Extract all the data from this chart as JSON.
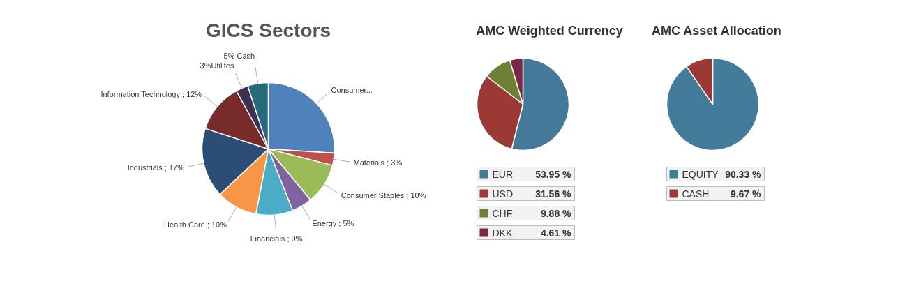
{
  "chart_data": [
    {
      "type": "pie",
      "title": "GICS Sectors",
      "categories": [
        "Consumer...",
        "Materials ; 3%",
        "Consumer Staples ; 10%",
        "Energy ; 5%",
        "Financials ; 9%",
        "Health Care ; 10%",
        "Industrials ; 17%",
        "Information Technology ; 12%",
        "3%Utilites",
        "5% Cash"
      ],
      "values": [
        26,
        3,
        10,
        5,
        9,
        10,
        17,
        12,
        3,
        5
      ],
      "colors": [
        "#4f81bd",
        "#c0504d",
        "#9bbb59",
        "#8064a2",
        "#4bacc6",
        "#f79646",
        "#2c4d75",
        "#772c2a",
        "#3f3151",
        "#276a7c"
      ],
      "legend": false
    },
    {
      "type": "pie",
      "title": "AMC Weighted Currency",
      "categories": [
        "EUR",
        "USD",
        "CHF",
        "DKK"
      ],
      "values": [
        53.95,
        31.56,
        9.88,
        4.61
      ],
      "value_labels": [
        "53.95 %",
        "31.56 %",
        "9.88 %",
        "4.61 %"
      ],
      "colors": [
        "#44799a",
        "#9b3a35",
        "#6e7f36",
        "#7f2448"
      ],
      "legend": "bottom"
    },
    {
      "type": "pie",
      "title": "AMC Asset Allocation",
      "categories": [
        "EQUITY",
        "CASH"
      ],
      "values": [
        90.33,
        9.67
      ],
      "value_labels": [
        "90.33 %",
        "9.67 %"
      ],
      "colors": [
        "#437c9b",
        "#9b3a35"
      ],
      "legend": "bottom"
    }
  ]
}
